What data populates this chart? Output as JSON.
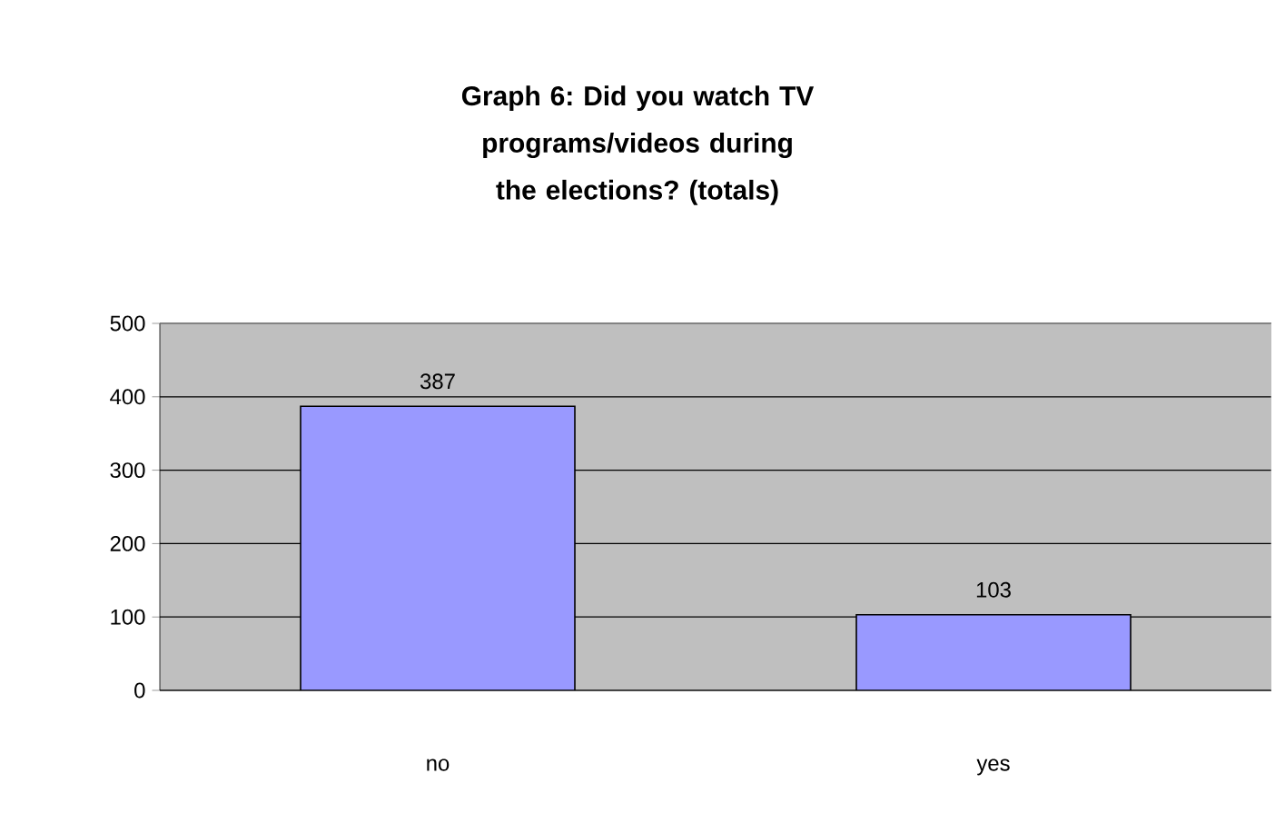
{
  "chart_data": {
    "type": "bar",
    "title": "Graph 6: Did you watch TV programs/videos during the elections? (totals)",
    "categories": [
      "no",
      "yes"
    ],
    "values": [
      387,
      103
    ],
    "color": "#9999ff",
    "ylim": [
      0,
      500
    ],
    "yticks": [
      0,
      100,
      200,
      300,
      400,
      500
    ],
    "grid": "y",
    "data_labels": true
  }
}
